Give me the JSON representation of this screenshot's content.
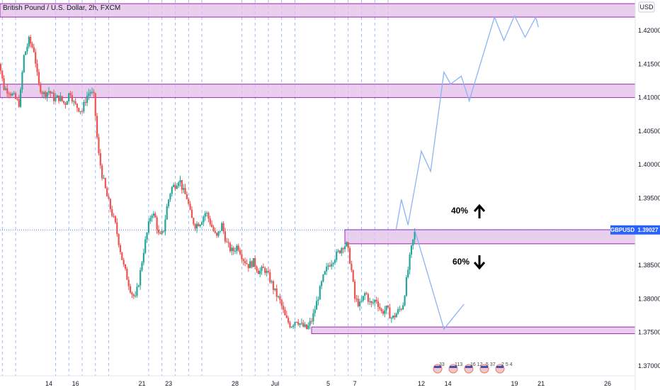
{
  "header": {
    "symbol_title": "British Pound / U.S. Dollar, 2h, FXCM",
    "currency": "USD"
  },
  "price_tag": {
    "symbol": "GBPUSD",
    "value": "1.39027"
  },
  "annotations": [
    {
      "label": "40%",
      "direction": "up"
    },
    {
      "label": "60%",
      "direction": "down"
    }
  ],
  "events": [
    "33",
    "113",
    "16",
    "12",
    "1",
    "5",
    "37",
    "2",
    "5",
    "4"
  ],
  "colors": {
    "up": "#26a69a",
    "down": "#ef5350",
    "zone_fill": "#e1bee7",
    "zone_border": "#9c27b0",
    "projection": "#8ab4f8",
    "tag": "#2962ff",
    "grid_dash": "#2962ff"
  },
  "chart_data": {
    "type": "candlestick",
    "title": "British Pound / U.S. Dollar, 2h, FXCM",
    "y_axis": {
      "currency": "USD",
      "range": [
        1.3685,
        1.4245
      ],
      "ticks": [
        "1.42000",
        "1.41500",
        "1.41000",
        "1.40500",
        "1.40000",
        "1.39500",
        "1.39027",
        "1.38500",
        "1.38000",
        "1.37500",
        "1.37000"
      ]
    },
    "x_axis": {
      "ticks": [
        {
          "label": "14",
          "day": 14
        },
        {
          "label": "16",
          "day": 16
        },
        {
          "label": "21",
          "day": 21
        },
        {
          "label": "23",
          "day": 23
        },
        {
          "label": "28",
          "day": 28
        },
        {
          "label": "Jul",
          "day": 31
        },
        {
          "label": "5",
          "day": 35
        },
        {
          "label": "7",
          "day": 37
        },
        {
          "label": "12",
          "day": 42
        },
        {
          "label": "14",
          "day": 44
        },
        {
          "label": "19",
          "day": 49
        },
        {
          "label": "21",
          "day": 51
        },
        {
          "label": "26",
          "day": 56
        }
      ]
    },
    "zones": [
      {
        "from": 1.422,
        "to": 1.424
      },
      {
        "from": 1.41,
        "to": 1.412
      },
      {
        "from": 1.3882,
        "to": 1.3903
      },
      {
        "from": 1.3748,
        "to": 1.3758
      }
    ],
    "current_price": 1.39027,
    "path": [
      [
        10.0,
        1.418
      ],
      [
        10.3,
        1.415
      ],
      [
        10.6,
        1.4115
      ],
      [
        11.0,
        1.411
      ],
      [
        11.4,
        1.41
      ],
      [
        11.8,
        1.409
      ],
      [
        12.1,
        1.416
      ],
      [
        12.5,
        1.4185
      ],
      [
        12.9,
        1.417
      ],
      [
        13.2,
        1.412
      ],
      [
        13.6,
        1.4105
      ],
      [
        14.0,
        1.411
      ],
      [
        14.4,
        1.4098
      ],
      [
        14.8,
        1.41
      ],
      [
        15.2,
        1.409
      ],
      [
        15.6,
        1.411
      ],
      [
        15.9,
        1.409
      ],
      [
        16.2,
        1.4085
      ],
      [
        16.5,
        1.408
      ],
      [
        16.8,
        1.41
      ],
      [
        17.1,
        1.411
      ],
      [
        17.4,
        1.41
      ],
      [
        17.7,
        1.402
      ],
      [
        18.0,
        1.3985
      ],
      [
        18.4,
        1.395
      ],
      [
        18.7,
        1.393
      ],
      [
        19.0,
        1.391
      ],
      [
        19.3,
        1.388
      ],
      [
        19.6,
        1.385
      ],
      [
        19.9,
        1.383
      ],
      [
        20.2,
        1.381
      ],
      [
        20.5,
        1.38
      ],
      [
        20.8,
        1.383
      ],
      [
        21.1,
        1.387
      ],
      [
        21.4,
        1.39
      ],
      [
        21.7,
        1.393
      ],
      [
        22.0,
        1.392
      ],
      [
        22.3,
        1.389
      ],
      [
        22.6,
        1.39
      ],
      [
        22.9,
        1.394
      ],
      [
        23.2,
        1.3965
      ],
      [
        23.5,
        1.397
      ],
      [
        23.8,
        1.398
      ],
      [
        24.1,
        1.396
      ],
      [
        24.4,
        1.395
      ],
      [
        24.7,
        1.392
      ],
      [
        25.0,
        1.391
      ],
      [
        25.4,
        1.3915
      ],
      [
        25.8,
        1.393
      ],
      [
        26.2,
        1.391
      ],
      [
        26.6,
        1.389
      ],
      [
        27.0,
        1.391
      ],
      [
        27.4,
        1.388
      ],
      [
        27.8,
        1.387
      ],
      [
        28.2,
        1.388
      ],
      [
        28.6,
        1.386
      ],
      [
        29.0,
        1.385
      ],
      [
        29.4,
        1.3855
      ],
      [
        29.8,
        1.384
      ],
      [
        30.2,
        1.3845
      ],
      [
        30.6,
        1.383
      ],
      [
        31.0,
        1.381
      ],
      [
        31.4,
        1.3795
      ],
      [
        31.8,
        1.377
      ],
      [
        32.2,
        1.376
      ],
      [
        32.6,
        1.377
      ],
      [
        33.0,
        1.376
      ],
      [
        33.4,
        1.3755
      ],
      [
        33.8,
        1.377
      ],
      [
        34.2,
        1.38
      ],
      [
        34.6,
        1.383
      ],
      [
        35.0,
        1.385
      ],
      [
        35.4,
        1.386
      ],
      [
        35.8,
        1.387
      ],
      [
        36.1,
        1.388
      ],
      [
        36.4,
        1.388
      ],
      [
        36.7,
        1.385
      ],
      [
        37.0,
        1.38
      ],
      [
        37.4,
        1.379
      ],
      [
        37.8,
        1.381
      ],
      [
        38.2,
        1.379
      ],
      [
        38.6,
        1.38
      ],
      [
        39.0,
        1.378
      ],
      [
        39.4,
        1.3785
      ],
      [
        39.8,
        1.377
      ],
      [
        40.2,
        1.378
      ],
      [
        40.6,
        1.379
      ],
      [
        40.9,
        1.383
      ],
      [
        41.2,
        1.387
      ],
      [
        41.5,
        1.3898
      ]
    ],
    "projection_up": [
      [
        40.1,
        1.3903
      ],
      [
        40.5,
        1.3948
      ],
      [
        41.0,
        1.391
      ],
      [
        42.0,
        1.402
      ],
      [
        42.7,
        1.399
      ],
      [
        43.7,
        1.4138
      ],
      [
        44.2,
        1.412
      ],
      [
        45.0,
        1.4132
      ],
      [
        45.6,
        1.4095
      ],
      [
        47.5,
        1.422
      ],
      [
        48.2,
        1.4185
      ],
      [
        49.0,
        1.4222
      ],
      [
        49.8,
        1.419
      ],
      [
        50.6,
        1.422
      ],
      [
        50.8,
        1.4205
      ]
    ],
    "projection_down": [
      [
        41.5,
        1.3903
      ],
      [
        43.7,
        1.3755
      ],
      [
        45.2,
        1.3792
      ]
    ]
  }
}
